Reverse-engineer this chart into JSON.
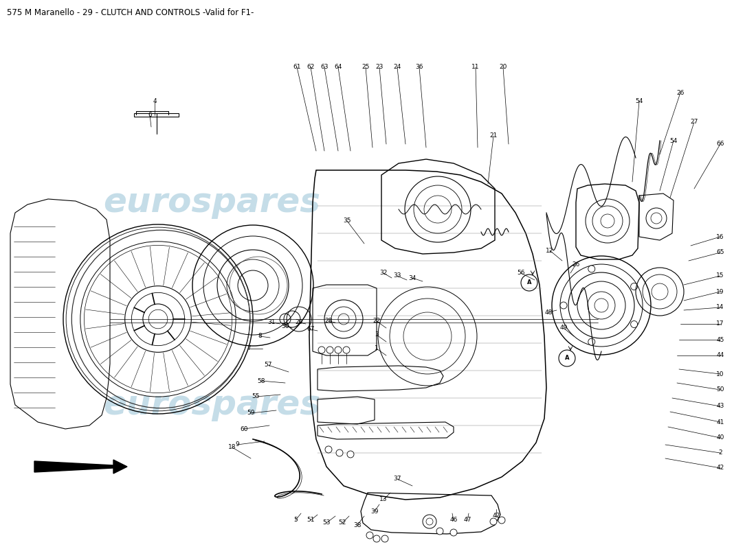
{
  "title": "575 M Maranello - 29 - CLUTCH AND CONTROLS -Valid for F1-",
  "title_fontsize": 8.5,
  "bg_color": "#ffffff",
  "watermark_text": "eurospares",
  "watermark_color": "#c5dde8",
  "watermark_fontsize": 36,
  "fig_width": 11.0,
  "fig_height": 8.0,
  "label_fontsize": 6.5,
  "line_color": "#000000",
  "lw_main": 1.0,
  "lw_thin": 0.5
}
